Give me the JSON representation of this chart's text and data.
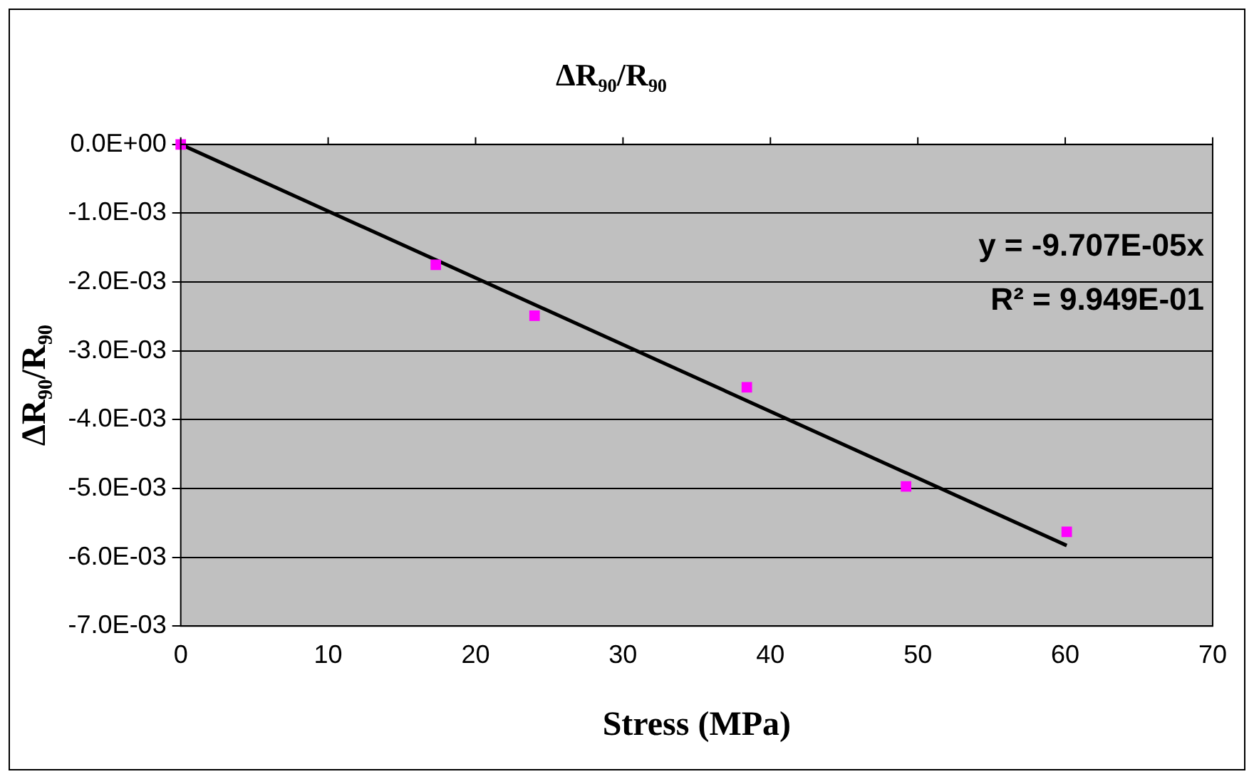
{
  "chart_data": {
    "type": "scatter",
    "title": "ΔR₉₀/R₉₀",
    "xlabel": "Stress (MPa)",
    "ylabel": "ΔR₉₀/R₉₀",
    "series": [
      {
        "color": "#ff00ff",
        "marker": "square",
        "x": [
          0,
          17.3,
          24.0,
          38.4,
          49.2,
          60.1
        ],
        "values": [
          0,
          -0.00175,
          -0.00249,
          -0.00353,
          -0.00497,
          -0.00563
        ]
      },
      {
        "type": "line",
        "color": "#000000",
        "marker": "none",
        "x": [
          0,
          60.1
        ],
        "values": [
          0,
          -0.00583
        ]
      }
    ],
    "xlim": [
      0,
      70
    ],
    "xticks": [
      0,
      10,
      20,
      30,
      40,
      50,
      60,
      70
    ],
    "ylim": [
      -0.007,
      0
    ],
    "yticks": [
      {
        "value": 0,
        "label": "0.0E+00"
      },
      {
        "value": -0.001,
        "label": "-1.0E-03"
      },
      {
        "value": -0.002,
        "label": "-2.0E-03"
      },
      {
        "value": -0.003,
        "label": "-3.0E-03"
      },
      {
        "value": -0.004,
        "label": "-4.0E-03"
      },
      {
        "value": -0.005,
        "label": "-5.0E-03"
      },
      {
        "value": -0.006,
        "label": "-6.0E-03"
      },
      {
        "value": -0.007,
        "label": "-7.0E-03"
      }
    ],
    "grid": "y",
    "legend": false,
    "annotations": [
      "y = -9.707E-05x",
      "R² = 9.949E-01"
    ]
  }
}
